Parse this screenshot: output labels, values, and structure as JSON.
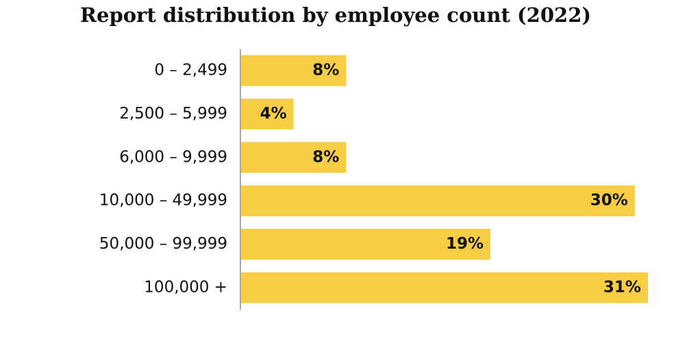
{
  "chart_data": {
    "type": "bar",
    "orientation": "horizontal",
    "title": "Report distribution by employee count (2022)",
    "categories": [
      "0 – 2,499",
      "2,500 – 5,999",
      "6,000 – 9,999",
      "10,000 – 49,999",
      "50,000 – 99,999",
      "100,000 +"
    ],
    "values": [
      8,
      4,
      8,
      30,
      19,
      31
    ],
    "value_labels": [
      "8%",
      "4%",
      "8%",
      "30%",
      "19%",
      "31%"
    ],
    "color": "#f6cd45"
  }
}
